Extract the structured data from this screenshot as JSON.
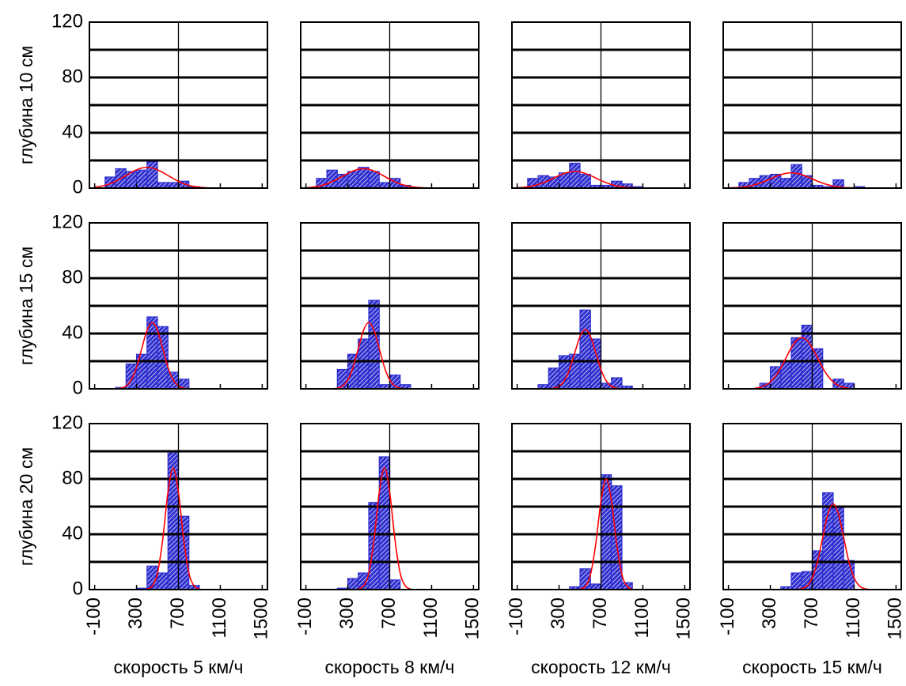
{
  "chart_data": {
    "type": "histogram-grid",
    "row_labels": [
      "глубина 10 см",
      "глубина 15 см",
      "глубина 20 см"
    ],
    "col_labels": [
      "скорость 5 км/ч",
      "скорость 8 км/ч",
      "скорость 12 км/ч",
      "скорость 15 км/ч"
    ],
    "xlim": [
      -150,
      1550
    ],
    "xticks": [
      -100,
      300,
      700,
      1100,
      1500
    ],
    "ylim": [
      0,
      120
    ],
    "yticks": [
      0,
      40,
      80,
      120
    ],
    "y_grid": [
      20,
      40,
      60,
      80,
      100
    ],
    "x_grid": [
      700
    ],
    "bar_color": "#2f2fd0",
    "curve_color": "#ff0000",
    "panels": [
      {
        "type": "histogram",
        "bins": [
          0,
          100,
          200,
          300,
          400,
          500,
          600,
          700,
          800,
          900
        ],
        "values": [
          8,
          14,
          12,
          13,
          19,
          4,
          4,
          5,
          1
        ],
        "curve": {
          "x": [
            -100,
            -50,
            0,
            50,
            100,
            150,
            200,
            250,
            300,
            350,
            400,
            450,
            500,
            550,
            600,
            650,
            700,
            750,
            800,
            850,
            900,
            950,
            1000
          ],
          "y": [
            0.7,
            1.2,
            2.0,
            3.2,
            4.9,
            6.9,
            9.1,
            11.3,
            13.2,
            14.5,
            15,
            14.5,
            13.2,
            11.3,
            9.1,
            6.9,
            4.9,
            3.2,
            2.0,
            1.2,
            0.7,
            0.3,
            0.2
          ]
        }
      },
      {
        "type": "histogram",
        "bins": [
          0,
          100,
          200,
          300,
          400,
          500,
          600,
          700,
          800,
          900
        ],
        "values": [
          7,
          13,
          10,
          12,
          15,
          12,
          4,
          7,
          2
        ],
        "curve": {
          "x": [
            -100,
            -50,
            0,
            50,
            100,
            150,
            200,
            250,
            300,
            350,
            400,
            450,
            500,
            550,
            600,
            650,
            700,
            750,
            800,
            850,
            900,
            950,
            1000,
            1050
          ],
          "y": [
            0.3,
            0.6,
            1.1,
            1.9,
            3.0,
            4.6,
            6.4,
            8.5,
            10.6,
            12.3,
            13.6,
            14,
            13.6,
            12.3,
            10.6,
            8.5,
            6.4,
            4.6,
            3.0,
            1.9,
            1.1,
            0.6,
            0.3,
            0.2
          ]
        }
      },
      {
        "type": "histogram",
        "bins": [
          0,
          100,
          200,
          300,
          400,
          500,
          600,
          700,
          800,
          900,
          1000,
          1100
        ],
        "values": [
          7,
          9,
          8,
          11,
          18,
          10,
          2,
          2,
          5,
          3,
          1
        ],
        "curve": {
          "x": [
            -100,
            -50,
            0,
            50,
            100,
            150,
            200,
            250,
            300,
            350,
            400,
            450,
            500,
            550,
            600,
            650,
            700,
            750,
            800,
            850,
            900,
            950,
            1000,
            1050
          ],
          "y": [
            0.3,
            0.5,
            1.0,
            1.6,
            2.6,
            3.9,
            5.5,
            7.3,
            9.1,
            10.6,
            11.6,
            12,
            11.6,
            10.6,
            9.1,
            7.3,
            5.5,
            3.9,
            2.6,
            1.6,
            1.0,
            0.5,
            0.3,
            0.1
          ]
        }
      },
      {
        "type": "histogram",
        "bins": [
          0,
          100,
          200,
          300,
          400,
          500,
          600,
          700,
          800,
          900,
          1000,
          1100,
          1200
        ],
        "values": [
          4,
          7,
          9,
          10,
          7,
          17,
          9,
          2,
          1,
          6,
          0,
          1
        ],
        "curve": {
          "x": [
            -100,
            -50,
            0,
            50,
            100,
            150,
            200,
            250,
            300,
            350,
            400,
            450,
            500,
            550,
            600,
            650,
            700,
            750,
            800,
            850,
            900,
            950,
            1000,
            1050,
            1100
          ],
          "y": [
            0.1,
            0.3,
            0.5,
            0.9,
            1.5,
            2.4,
            3.6,
            5.0,
            6.7,
            8.3,
            9.7,
            10.7,
            11,
            10.7,
            9.7,
            8.3,
            6.7,
            5.0,
            3.6,
            2.4,
            1.5,
            0.9,
            0.5,
            0.3,
            0.1
          ]
        }
      },
      {
        "type": "histogram",
        "bins": [
          100,
          200,
          300,
          400,
          500,
          600,
          700,
          800
        ],
        "values": [
          1,
          18,
          25,
          52,
          45,
          12,
          7
        ],
        "curve": {
          "x": [
            100,
            150,
            200,
            250,
            300,
            350,
            400,
            450,
            500,
            550,
            600,
            650,
            700,
            750,
            800
          ],
          "y": [
            0.1,
            0.5,
            2.1,
            6.5,
            15.6,
            29.1,
            42.3,
            48,
            42.3,
            29.1,
            15.6,
            6.5,
            2.1,
            0.5,
            0.1
          ]
        }
      },
      {
        "type": "histogram",
        "bins": [
          200,
          300,
          400,
          500,
          600,
          700,
          800,
          900
        ],
        "values": [
          14,
          25,
          36,
          64,
          3,
          10,
          3
        ],
        "curve": {
          "x": [
            150,
            200,
            250,
            300,
            350,
            400,
            450,
            500,
            550,
            600,
            650,
            700,
            750,
            800,
            850
          ],
          "y": [
            0.1,
            0.5,
            2.1,
            6.5,
            15.6,
            29.1,
            42.3,
            48,
            42.3,
            29.1,
            15.6,
            6.5,
            2.1,
            0.5,
            0.1
          ]
        }
      },
      {
        "type": "histogram",
        "bins": [
          100,
          200,
          300,
          400,
          500,
          600,
          700,
          800,
          900,
          1000
        ],
        "values": [
          3,
          15,
          24,
          25,
          57,
          36,
          4,
          8,
          2
        ],
        "curve": {
          "x": [
            200,
            250,
            300,
            350,
            400,
            450,
            500,
            550,
            600,
            650,
            700,
            750,
            800,
            850,
            900
          ],
          "y": [
            0.1,
            0.5,
            1.9,
            5.8,
            14.0,
            26.1,
            37.9,
            43,
            37.9,
            26.1,
            14.0,
            5.8,
            1.9,
            0.5,
            0.1
          ]
        }
      },
      {
        "type": "histogram",
        "bins": [
          200,
          300,
          400,
          500,
          600,
          700,
          800,
          900,
          1000,
          1100
        ],
        "values": [
          4,
          16,
          20,
          37,
          46,
          29,
          0,
          7,
          4
        ],
        "curve": {
          "x": [
            150,
            200,
            250,
            300,
            350,
            400,
            450,
            500,
            550,
            600,
            650,
            700,
            750,
            800,
            850,
            900,
            950,
            1000,
            1050
          ],
          "y": [
            0.4,
            1.1,
            2.4,
            5.0,
            9.2,
            15.2,
            22.5,
            29.6,
            35.0,
            37,
            35.0,
            29.6,
            22.5,
            15.2,
            9.2,
            5.0,
            2.4,
            1.1,
            0.4
          ]
        }
      },
      {
        "type": "histogram",
        "bins": [
          300,
          400,
          500,
          600,
          700,
          800,
          900
        ],
        "values": [
          1,
          17,
          12,
          100,
          53,
          3
        ],
        "curve": {
          "x": [
            400,
            450,
            500,
            550,
            600,
            650,
            700,
            750,
            800,
            850,
            900
          ],
          "y": [
            0.4,
            2.6,
            11.9,
            36.2,
            70.4,
            88,
            70.4,
            36.2,
            11.9,
            2.6,
            0.4
          ]
        }
      },
      {
        "type": "histogram",
        "bins": [
          200,
          300,
          400,
          500,
          600,
          700,
          800
        ],
        "values": [
          1,
          8,
          12,
          63,
          96,
          7
        ],
        "curve": {
          "x": [
            400,
            450,
            500,
            550,
            600,
            650,
            700,
            750,
            800,
            850,
            900
          ],
          "y": [
            0.4,
            2.6,
            11.9,
            36.2,
            70.4,
            88,
            70.4,
            36.2,
            11.9,
            2.6,
            0.4
          ]
        }
      },
      {
        "type": "histogram",
        "bins": [
          400,
          500,
          600,
          700,
          800,
          900,
          1000
        ],
        "values": [
          2,
          15,
          4,
          83,
          75,
          5
        ],
        "curve": {
          "x": [
            500,
            550,
            600,
            650,
            700,
            750,
            800,
            850,
            900,
            950,
            1000
          ],
          "y": [
            0.3,
            2.3,
            10.8,
            32.9,
            64,
            80,
            64,
            32.9,
            10.8,
            2.3,
            0.3
          ]
        }
      },
      {
        "type": "histogram",
        "bins": [
          400,
          500,
          600,
          700,
          800,
          900,
          1000,
          1100
        ],
        "values": [
          2,
          12,
          13,
          28,
          70,
          59,
          21
        ],
        "curve": {
          "x": [
            550,
            600,
            650,
            700,
            750,
            800,
            850,
            900,
            950,
            1000,
            1050,
            1100,
            1150,
            1200,
            1250
          ],
          "y": [
            0.1,
            0.7,
            2.7,
            8.4,
            20.2,
            37.6,
            54.7,
            62,
            54.7,
            37.6,
            20.2,
            8.4,
            2.7,
            0.7,
            0.1
          ]
        }
      }
    ]
  }
}
